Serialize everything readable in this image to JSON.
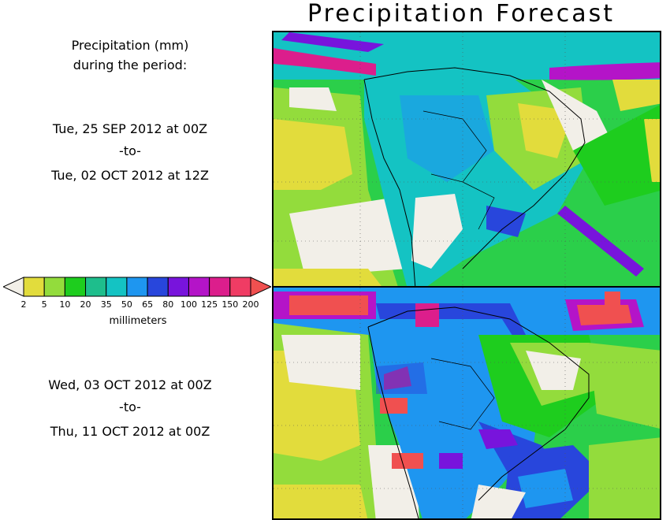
{
  "title": "Precipitation Forecast",
  "legend_heading_line1": "Precipitation (mm)",
  "legend_heading_line2": "during the period:",
  "period1": {
    "start": "Tue, 25 SEP 2012 at 00Z",
    "sep": "-to-",
    "end": "Tue, 02 OCT 2012 at 12Z"
  },
  "period2": {
    "start": "Wed, 03 OCT 2012 at 00Z",
    "sep": "-to-",
    "end": "Thu, 11 OCT 2012 at 00Z"
  },
  "colorbar": {
    "units": "millimeters",
    "levels": [
      "2",
      "5",
      "10",
      "20",
      "35",
      "50",
      "65",
      "80",
      "100",
      "125",
      "150",
      "200"
    ],
    "colors": [
      "#f2efe8",
      "#e2dc3c",
      "#93dc3c",
      "#1ecd1e",
      "#1ebe8c",
      "#14c3c3",
      "#1e96f0",
      "#2846dc",
      "#7814dc",
      "#b414c8",
      "#dc1e8c",
      "#f03c64",
      "#f05050"
    ]
  },
  "colors": {
    "ocean_bg": "#2bcf4a",
    "land_dry": "#f0e8e0",
    "coast": "#000000"
  }
}
